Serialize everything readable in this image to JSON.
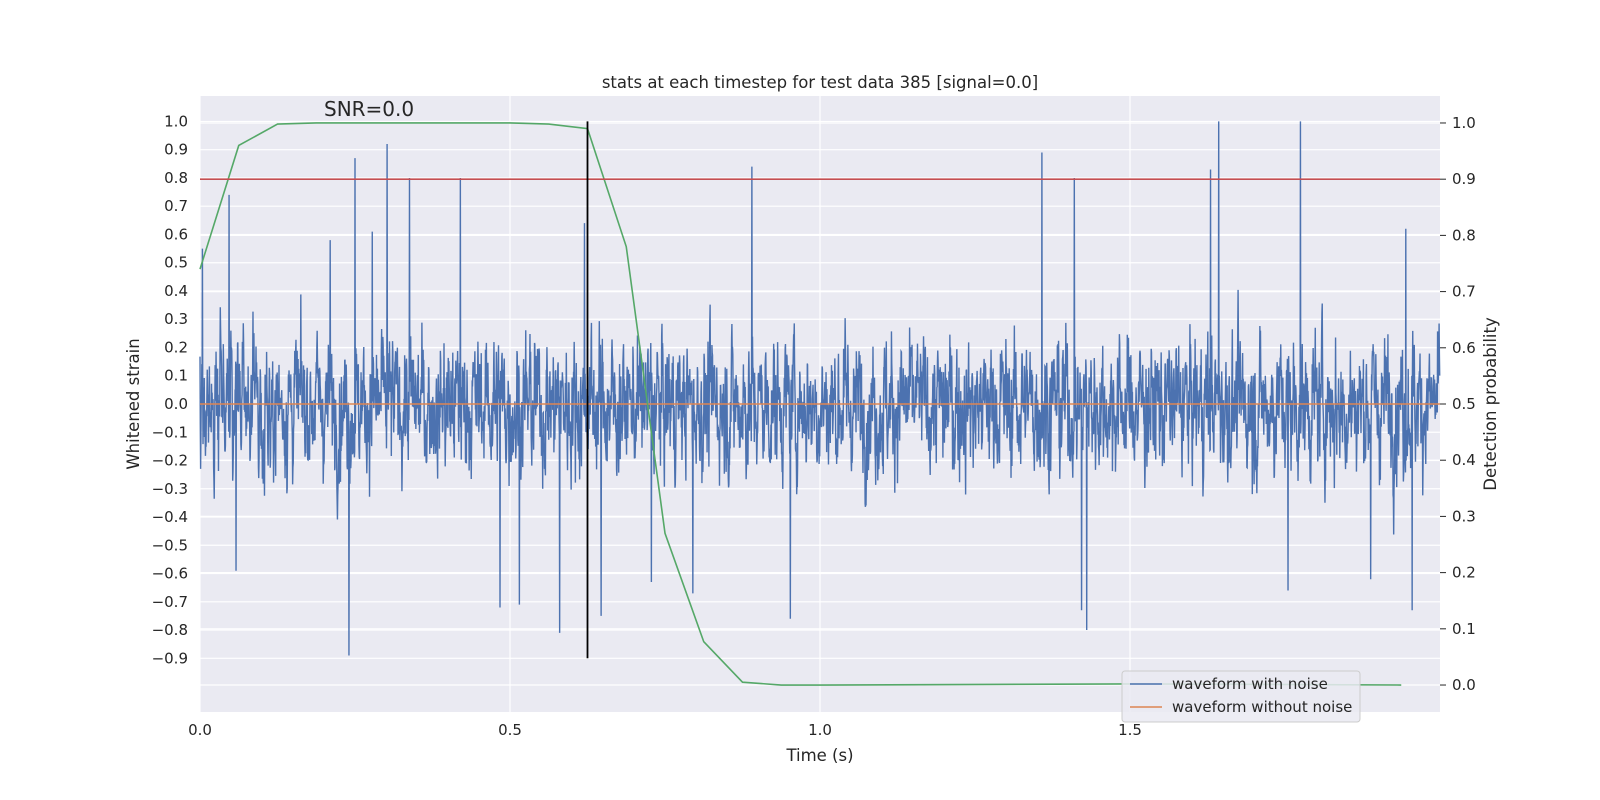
{
  "chart_data": {
    "type": "line",
    "title": "stats at each timestep for test data 385 [signal=0.0]",
    "xlabel": "Time (s)",
    "ylabel": "Whitened strain",
    "y2label": "Detection probability",
    "xlim": [
      0.0,
      2.0
    ],
    "ylim": [
      -1.09,
      1.09
    ],
    "y2lim": [
      -0.048,
      1.048
    ],
    "xticks": [
      0.0,
      0.5,
      1.0,
      1.5
    ],
    "xtick_labels": [
      "0.0",
      "0.5",
      "1.0",
      "1.5"
    ],
    "yticks": [
      1.0,
      0.9,
      0.8,
      0.7,
      0.6,
      0.5,
      0.4,
      0.3,
      0.2,
      0.1,
      0.0,
      -0.1,
      -0.2,
      -0.3,
      -0.4,
      -0.5,
      -0.6,
      -0.7,
      -0.8,
      -0.9
    ],
    "ytick_labels": [
      "1.0",
      "0.9",
      "0.8",
      "0.7",
      "0.6",
      "0.5",
      "0.4",
      "0.3",
      "0.2",
      "0.1",
      "0.0",
      "−0.1",
      "−0.2",
      "−0.3",
      "−0.4",
      "−0.5",
      "−0.6",
      "−0.7",
      "−0.8",
      "−0.9"
    ],
    "y2ticks": [
      0.0,
      0.1,
      0.2,
      0.3,
      0.4,
      0.5,
      0.6,
      0.7,
      0.8,
      0.9,
      1.0
    ],
    "y2tick_labels": [
      "0.0",
      "0.1",
      "0.2",
      "0.3",
      "0.4",
      "0.5",
      "0.6",
      "0.7",
      "0.8",
      "0.9",
      "1.0"
    ],
    "grid": true,
    "legend_placement": "lower-right",
    "annotation": "SNR=0.0",
    "annotation_pos": [
      0.2,
      1.02
    ],
    "series": [
      {
        "name": "waveform with noise",
        "axis": "left",
        "color": "#4c72b0",
        "style": "noise",
        "sample_rate": 2048,
        "x_start": 0.0,
        "x_end": 2.0,
        "amplitude_range": [
          -0.89,
          1.0
        ],
        "peaks": [
          [
            0.004,
            0.55
          ],
          [
            0.047,
            0.74
          ],
          [
            0.058,
            -0.59
          ],
          [
            0.21,
            0.58
          ],
          [
            0.24,
            -0.89
          ],
          [
            0.25,
            0.87
          ],
          [
            0.278,
            0.61
          ],
          [
            0.302,
            0.92
          ],
          [
            0.338,
            0.8
          ],
          [
            0.42,
            0.8
          ],
          [
            0.484,
            -0.72
          ],
          [
            0.515,
            -0.71
          ],
          [
            0.58,
            -0.81
          ],
          [
            0.62,
            0.64
          ],
          [
            0.647,
            -0.75
          ],
          [
            0.728,
            -0.63
          ],
          [
            0.795,
            -0.67
          ],
          [
            0.89,
            0.84
          ],
          [
            0.952,
            -0.76
          ],
          [
            1.358,
            0.89
          ],
          [
            1.41,
            0.8
          ],
          [
            1.43,
            -0.8
          ],
          [
            1.422,
            -0.73
          ],
          [
            1.63,
            0.83
          ],
          [
            1.643,
            1.0
          ],
          [
            1.755,
            -0.66
          ],
          [
            1.775,
            1.0
          ],
          [
            1.888,
            -0.62
          ],
          [
            1.955,
            -0.73
          ],
          [
            1.945,
            0.62
          ]
        ]
      },
      {
        "name": "waveform without noise",
        "axis": "left",
        "color": "#dd8452",
        "x": [
          0.0,
          2.0
        ],
        "y": [
          0.0,
          0.0
        ]
      },
      {
        "name": "",
        "axis": "right",
        "color": "#55a868",
        "x": [
          0.0,
          0.0625,
          0.125,
          0.1875,
          0.25,
          0.3125,
          0.375,
          0.4375,
          0.5,
          0.5625,
          0.625,
          0.6875,
          0.75,
          0.8125,
          0.875,
          0.9375,
          1.0,
          1.5,
          1.9375
        ],
        "y": [
          0.74,
          0.96,
          0.998,
          1.0,
          1.0,
          1.0,
          1.0,
          1.0,
          1.0,
          0.998,
          0.99,
          0.78,
          0.27,
          0.077,
          0.005,
          0.0,
          0.0,
          0.002,
          0.0
        ]
      },
      {
        "name": "",
        "axis": "right",
        "color": "#c44e52",
        "x": [
          0.0,
          2.0
        ],
        "y": [
          0.9,
          0.9
        ]
      },
      {
        "name": "",
        "axis": "left",
        "color": "#000000",
        "type": "vline",
        "x": [
          0.625,
          0.625
        ],
        "y": [
          -0.9,
          1.0
        ]
      }
    ]
  }
}
